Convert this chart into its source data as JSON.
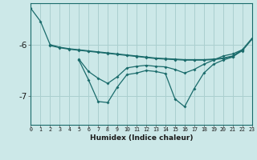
{
  "xlabel": "Humidex (Indice chaleur)",
  "bg_color": "#cce8e8",
  "grid_color": "#aacfcf",
  "line_color": "#1a6b6b",
  "x_ticks": [
    0,
    1,
    2,
    3,
    4,
    5,
    6,
    7,
    8,
    9,
    10,
    11,
    12,
    13,
    14,
    15,
    16,
    17,
    18,
    19,
    20,
    21,
    22,
    23
  ],
  "series": [
    [
      -5.3,
      -5.55,
      -6.0,
      -6.05,
      -6.08,
      -6.1,
      -6.12,
      -6.14,
      -6.16,
      -6.18,
      -6.2,
      -6.22,
      -6.24,
      -6.26,
      -6.27,
      -6.28,
      -6.29,
      -6.29,
      -6.29,
      -6.28,
      -6.26,
      -6.22,
      -6.1,
      -5.88
    ],
    [
      null,
      null,
      -6.02,
      -6.06,
      -6.09,
      -6.11,
      -6.13,
      -6.15,
      -6.17,
      -6.19,
      -6.21,
      -6.23,
      -6.25,
      -6.27,
      -6.28,
      -6.29,
      -6.3,
      -6.3,
      -6.3,
      -6.29,
      -6.27,
      -6.23,
      -6.12,
      -5.9
    ],
    [
      null,
      null,
      null,
      null,
      null,
      -6.28,
      -6.52,
      -6.65,
      -6.75,
      -6.62,
      -6.45,
      -6.42,
      -6.4,
      -6.42,
      -6.43,
      -6.48,
      -6.55,
      -6.48,
      -6.38,
      -6.3,
      -6.22,
      -6.18,
      -6.1,
      null
    ],
    [
      null,
      null,
      null,
      null,
      null,
      -6.3,
      -6.68,
      -7.1,
      -7.12,
      -6.82,
      -6.58,
      -6.55,
      -6.5,
      -6.52,
      -6.56,
      -7.05,
      -7.2,
      -6.85,
      -6.55,
      -6.38,
      -6.3,
      -6.24,
      -6.1,
      null
    ]
  ],
  "ylim": [
    -7.55,
    -5.2
  ],
  "yticks": [
    -7.0,
    -6.0
  ],
  "xlim": [
    0,
    23
  ]
}
